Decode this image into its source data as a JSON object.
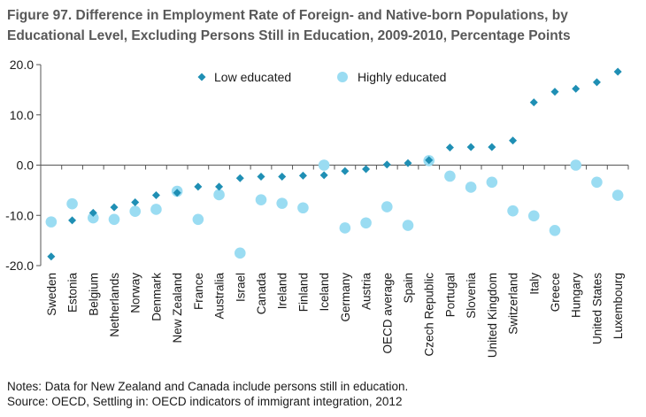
{
  "title": {
    "line1": "Figure 97. Difference in Employment Rate of Foreign- and Native-born Populations, by",
    "line2": "Educational Level, Excluding Persons Still in Education, 2009-2010, Percentage Points"
  },
  "notes": {
    "line1": "Notes: Data for New Zealand and Canada include persons still in education.",
    "line2": "Source: OECD, Settling in: OECD indicators of immigrant integration, 2012"
  },
  "colors": {
    "low_educated": "#1f8fb4",
    "highly_educated": "#9adcf2",
    "axis": "#555555"
  },
  "chart_data": {
    "type": "scatter",
    "title": "Figure 97. Difference in Employment Rate of Foreign- and Native-born Populations, by Educational Level, Excluding Persons Still in Education, 2009-2010, Percentage Points",
    "ylim": [
      -20,
      20
    ],
    "yticks": [
      20,
      10,
      0,
      -10,
      -20
    ],
    "ytick_labels": [
      "20.0",
      "10.0",
      "0.0",
      "-10.0",
      "-20.0"
    ],
    "grid": false,
    "legend_position": "top-center",
    "categories": [
      "Sweden",
      "Estonia",
      "Belgium",
      "Netherlands",
      "Norway",
      "Denmark",
      "New Zealand",
      "France",
      "Australia",
      "Israel",
      "Canada",
      "Ireland",
      "Finland",
      "Iceland",
      "Germany",
      "Austria",
      "OECD average",
      "Spain",
      "Czech Republic",
      "Portugal",
      "Slovenia",
      "United Kingdom",
      "Switzerland",
      "Italy",
      "Greece",
      "Hungary",
      "United States",
      "Luxembourg"
    ],
    "series": [
      {
        "name": "Low educated",
        "marker": "diamond",
        "values": [
          -18.2,
          -11.0,
          -9.5,
          -8.4,
          -7.4,
          -6.0,
          -5.5,
          -4.3,
          -4.3,
          -2.6,
          -2.3,
          -2.3,
          -2.1,
          -2.0,
          -1.2,
          -0.8,
          0.1,
          0.4,
          1.0,
          3.5,
          3.6,
          3.6,
          4.9,
          12.5,
          14.6,
          15.2,
          16.5,
          18.6
        ]
      },
      {
        "name": "Highly educated",
        "marker": "circle",
        "values": [
          -11.3,
          -7.7,
          -10.5,
          -10.8,
          -9.2,
          -8.8,
          -5.2,
          -10.8,
          -5.9,
          -17.5,
          -6.9,
          -7.6,
          -8.5,
          0.0,
          -12.5,
          -11.5,
          -8.3,
          -12.0,
          0.9,
          -2.2,
          -4.4,
          -3.4,
          -9.1,
          -10.1,
          -13.0,
          0.0,
          -3.4,
          -6.0
        ]
      }
    ]
  }
}
